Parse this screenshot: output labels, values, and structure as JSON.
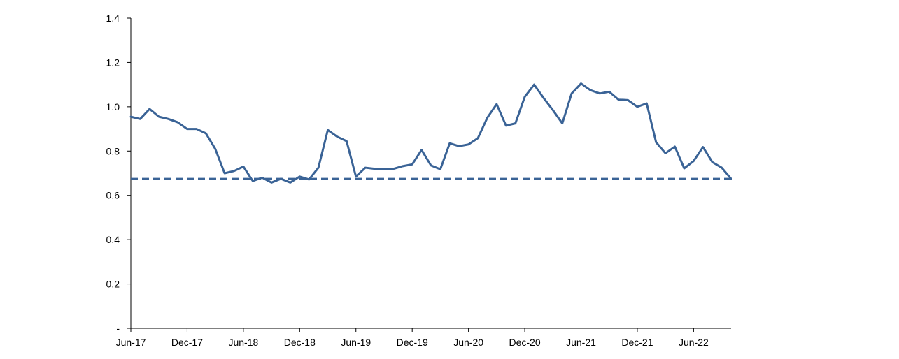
{
  "chart_data": {
    "type": "line",
    "title": "",
    "xlabel": "",
    "ylabel": "",
    "ylim": [
      0,
      1.4
    ],
    "y_ticks": [
      0,
      0.2,
      0.4,
      0.6,
      0.8,
      1.0,
      1.2,
      1.4
    ],
    "y_tick_labels": [
      "-",
      "0.2",
      "0.4",
      "0.6",
      "0.8",
      "1.0",
      "1.2",
      "1.4"
    ],
    "x_tick_labels": [
      "Jun-17",
      "Dec-17",
      "Jun-18",
      "Dec-18",
      "Jun-19",
      "Dec-19",
      "Jun-20",
      "Dec-20",
      "Jun-21",
      "Dec-21",
      "Jun-22"
    ],
    "x_start": "Jun-17",
    "x_end": "Sep-22",
    "grid": false,
    "legend": "none",
    "colors": {
      "series": "#3a6396",
      "reference": "#3a6396",
      "axis": "#000000"
    },
    "series": [
      {
        "style": "solid",
        "values": [
          0.955,
          0.945,
          0.99,
          0.955,
          0.945,
          0.93,
          0.9,
          0.9,
          0.88,
          0.81,
          0.7,
          0.71,
          0.73,
          0.665,
          0.68,
          0.658,
          0.675,
          0.658,
          0.685,
          0.672,
          0.725,
          0.895,
          0.865,
          0.845,
          0.685,
          0.725,
          0.72,
          0.718,
          0.72,
          0.732,
          0.74,
          0.805,
          0.735,
          0.718,
          0.835,
          0.822,
          0.83,
          0.858,
          0.95,
          1.012,
          0.915,
          0.925,
          1.045,
          1.1,
          1.04,
          0.985,
          0.925,
          1.06,
          1.105,
          1.075,
          1.06,
          1.068,
          1.032,
          1.03,
          1.0,
          1.015,
          0.84,
          0.79,
          0.82,
          0.722,
          0.755,
          0.818,
          0.75,
          0.725,
          0.675
        ]
      },
      {
        "style": "dashed",
        "values": [
          0.675,
          0.675
        ]
      }
    ]
  }
}
